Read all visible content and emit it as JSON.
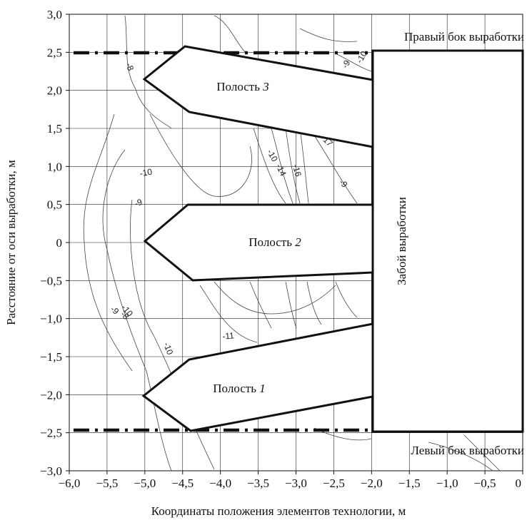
{
  "diagram": {
    "x_axis": {
      "title": "Координаты положения элементов технологии, м",
      "tick_labels": [
        "−6,0",
        "−5,5",
        "−5,0",
        "−4,5",
        "−4,0",
        "−3,5",
        "−3,0",
        "−2,5",
        "−2,0",
        "−1,5",
        "−1,0",
        "−0,5",
        "0"
      ],
      "range": [
        -6.0,
        0.0
      ]
    },
    "y_axis": {
      "title": "Расстояние от оси выработки, м",
      "tick_labels": [
        "3,0",
        "2,5",
        "2,0",
        "1,5",
        "1,0",
        "0,5",
        "0",
        "−0,5",
        "−1,0",
        "−1,5",
        "−2,0",
        "−2,5",
        "−3,0"
      ],
      "range": [
        -3.0,
        3.0
      ]
    },
    "labels": {
      "right_wall": "Правый бок выработки",
      "left_wall": "Левый бок выработки",
      "face": "Забой выработки",
      "cavity_word": "Полость",
      "cavity_3_number": "3",
      "cavity_2_number": "2",
      "cavity_1_number": "1"
    },
    "contour_labels": [
      "-8",
      "-9",
      "-10",
      "-10",
      "-14",
      "-16",
      "-17",
      "-9",
      "-10",
      "-9",
      "-8",
      "-9",
      "-10",
      "-11",
      "-10"
    ]
  }
}
